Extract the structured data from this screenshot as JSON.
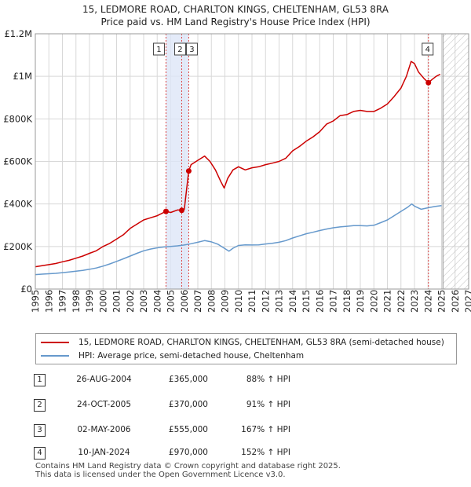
{
  "title_line1": "15, LEDMORE ROAD, CHARLTON KINGS, CHELTENHAM, GL53 8RA",
  "title_line2": "Price paid vs. HM Land Registry's House Price Index (HPI)",
  "colors": {
    "property": "#cc0000",
    "hpi": "#6699cc",
    "shade": "#dde6f7",
    "grid": "#d8d8d8",
    "marker_line": "#dd4444"
  },
  "chart_data": {
    "type": "line",
    "xlim": [
      1995,
      2027
    ],
    "ylim": [
      0,
      1200000
    ],
    "ytick_values": [
      0,
      200000,
      400000,
      600000,
      800000,
      1000000,
      1200000
    ],
    "ytick_labels": [
      "£0",
      "£200K",
      "£400K",
      "£600K",
      "£800K",
      "£1M",
      "£1.2M"
    ],
    "xtick_values": [
      1995,
      1996,
      1997,
      1998,
      1999,
      2000,
      2001,
      2002,
      2003,
      2004,
      2005,
      2006,
      2007,
      2008,
      2009,
      2010,
      2011,
      2012,
      2013,
      2014,
      2015,
      2016,
      2017,
      2018,
      2019,
      2020,
      2021,
      2022,
      2023,
      2024,
      2025,
      2026,
      2027
    ],
    "shaded_span": [
      2004.65,
      2006.33
    ],
    "future_from": 2025.1,
    "series": [
      {
        "name": "15, LEDMORE ROAD, CHARLTON KINGS, CHELTENHAM, GL53 8RA (semi-detached house)",
        "x": [
          1995.0,
          1995.5,
          1996.0,
          1996.5,
          1997.0,
          1997.5,
          1998.0,
          1998.5,
          1999.0,
          1999.5,
          2000.0,
          2000.5,
          2001.0,
          2001.5,
          2002.0,
          2002.5,
          2003.0,
          2003.5,
          2004.0,
          2004.65,
          2005.0,
          2005.5,
          2005.81,
          2006.0,
          2006.33,
          2006.5,
          2007.0,
          2007.5,
          2007.9,
          2008.3,
          2008.7,
          2008.95,
          2009.2,
          2009.6,
          2010.0,
          2010.5,
          2011.0,
          2011.5,
          2012.0,
          2012.5,
          2013.0,
          2013.5,
          2014.0,
          2014.5,
          2015.0,
          2015.5,
          2016.0,
          2016.5,
          2017.0,
          2017.5,
          2018.0,
          2018.5,
          2019.0,
          2019.5,
          2020.0,
          2020.5,
          2021.0,
          2021.5,
          2022.0,
          2022.4,
          2022.75,
          2023.0,
          2023.3,
          2023.7,
          2024.03,
          2024.3,
          2024.6,
          2024.9
        ],
        "values": [
          105000,
          110000,
          115000,
          120000,
          128000,
          135000,
          145000,
          155000,
          168000,
          180000,
          200000,
          215000,
          235000,
          255000,
          285000,
          305000,
          325000,
          335000,
          345000,
          365000,
          360000,
          372000,
          370000,
          375000,
          555000,
          585000,
          605000,
          625000,
          600000,
          560000,
          505000,
          475000,
          520000,
          560000,
          575000,
          560000,
          570000,
          575000,
          585000,
          592000,
          600000,
          615000,
          650000,
          670000,
          695000,
          715000,
          740000,
          775000,
          790000,
          815000,
          820000,
          835000,
          840000,
          835000,
          835000,
          850000,
          870000,
          905000,
          945000,
          1000000,
          1070000,
          1060000,
          1020000,
          990000,
          970000,
          985000,
          1000000,
          1010000
        ]
      },
      {
        "name": "HPI: Average price, semi-detached house, Cheltenham",
        "x": [
          1995.0,
          1995.5,
          1996.0,
          1996.5,
          1997.0,
          1997.5,
          1998.0,
          1998.5,
          1999.0,
          1999.5,
          2000.0,
          2000.5,
          2001.0,
          2001.5,
          2002.0,
          2002.5,
          2003.0,
          2003.5,
          2004.0,
          2004.5,
          2005.0,
          2005.5,
          2006.0,
          2006.5,
          2007.0,
          2007.5,
          2008.0,
          2008.5,
          2009.0,
          2009.3,
          2009.6,
          2010.0,
          2010.5,
          2011.0,
          2011.5,
          2012.0,
          2012.5,
          2013.0,
          2013.5,
          2014.0,
          2014.5,
          2015.0,
          2015.5,
          2016.0,
          2016.5,
          2017.0,
          2017.5,
          2018.0,
          2018.5,
          2019.0,
          2019.5,
          2020.0,
          2020.5,
          2021.0,
          2021.5,
          2022.0,
          2022.5,
          2022.8,
          2023.0,
          2023.5,
          2024.0,
          2024.5,
          2025.0
        ],
        "values": [
          68000,
          70000,
          72000,
          74000,
          77000,
          80000,
          84000,
          88000,
          93000,
          99000,
          108000,
          118000,
          130000,
          142000,
          155000,
          168000,
          180000,
          188000,
          194000,
          198000,
          200000,
          203000,
          207000,
          213000,
          220000,
          228000,
          222000,
          210000,
          190000,
          178000,
          192000,
          205000,
          208000,
          207000,
          208000,
          212000,
          215000,
          220000,
          228000,
          240000,
          250000,
          260000,
          267000,
          275000,
          282000,
          288000,
          292000,
          295000,
          298000,
          298000,
          297000,
          300000,
          312000,
          325000,
          345000,
          365000,
          385000,
          400000,
          390000,
          375000,
          382000,
          388000,
          392000
        ]
      }
    ],
    "sales": [
      {
        "num": "1",
        "x": 2004.65,
        "price": 365000,
        "date": "26-AUG-2004",
        "price_label": "£365,000",
        "hpi": "88% ↑ HPI"
      },
      {
        "num": "2",
        "x": 2005.81,
        "price": 370000,
        "date": "24-OCT-2005",
        "price_label": "£370,000",
        "hpi": "91% ↑ HPI"
      },
      {
        "num": "3",
        "x": 2006.33,
        "price": 555000,
        "date": "02-MAY-2006",
        "price_label": "£555,000",
        "hpi": "167% ↑ HPI"
      },
      {
        "num": "4",
        "x": 2024.03,
        "price": 970000,
        "date": "10-JAN-2024",
        "price_label": "£970,000",
        "hpi": "152% ↑ HPI"
      }
    ]
  },
  "legend": {
    "property_label": "15, LEDMORE ROAD, CHARLTON KINGS, CHELTENHAM, GL53 8RA (semi-detached house)",
    "hpi_label": "HPI: Average price, semi-detached house, Cheltenham"
  },
  "footer_line1": "Contains HM Land Registry data © Crown copyright and database right 2025.",
  "footer_line2": "This data is licensed under the Open Government Licence v3.0."
}
